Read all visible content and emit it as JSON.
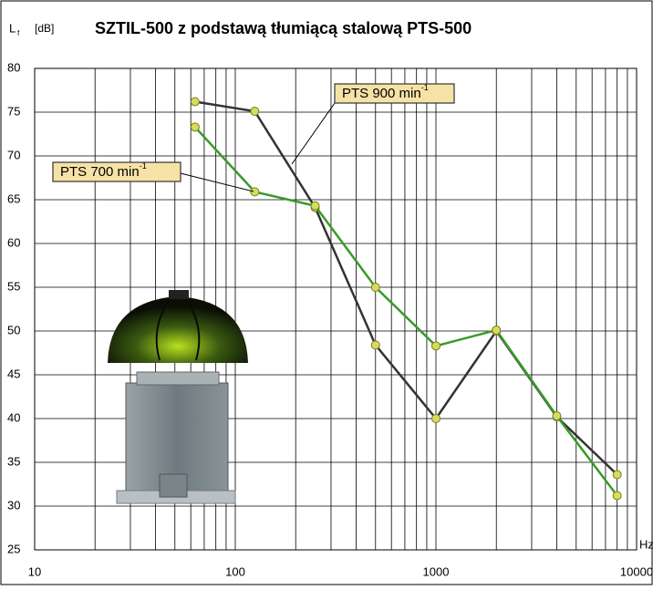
{
  "chart_data": {
    "type": "line",
    "title": "SZTIL-500 z podstawą tłumiącą stalową PTS-500",
    "y_label": {
      "symbol": "L",
      "subscript": "f",
      "unit": "[dB]"
    },
    "x_label": "Hz",
    "x": [
      63,
      125,
      250,
      500,
      1000,
      2000,
      4000,
      8000
    ],
    "series": [
      {
        "name": "PTS 900 min",
        "superscript": "-1",
        "color": "#333333",
        "marker": "#d6dc5c",
        "values": [
          76.2,
          75.1,
          64.1,
          48.4,
          40.0,
          50.0,
          40.2,
          33.6
        ]
      },
      {
        "name": "PTS 700 min",
        "superscript": "-1",
        "color": "#3a9a2a",
        "marker": "#d6dc5c",
        "values": [
          73.3,
          65.9,
          64.3,
          55.0,
          48.3,
          50.1,
          40.3,
          31.2
        ]
      }
    ],
    "xscale": "log",
    "xlim": [
      10,
      10000
    ],
    "xticks": [
      10,
      100,
      1000,
      10000
    ],
    "xminorticks": [
      20,
      30,
      40,
      50,
      60,
      70,
      80,
      90,
      200,
      300,
      400,
      500,
      600,
      700,
      800,
      900,
      2000,
      3000,
      4000,
      5000,
      6000,
      7000,
      8000,
      9000
    ],
    "ylim": [
      25,
      80
    ],
    "yticks": [
      25,
      30,
      35,
      40,
      45,
      50,
      55,
      60,
      65,
      70,
      75,
      80
    ],
    "grid": true
  }
}
